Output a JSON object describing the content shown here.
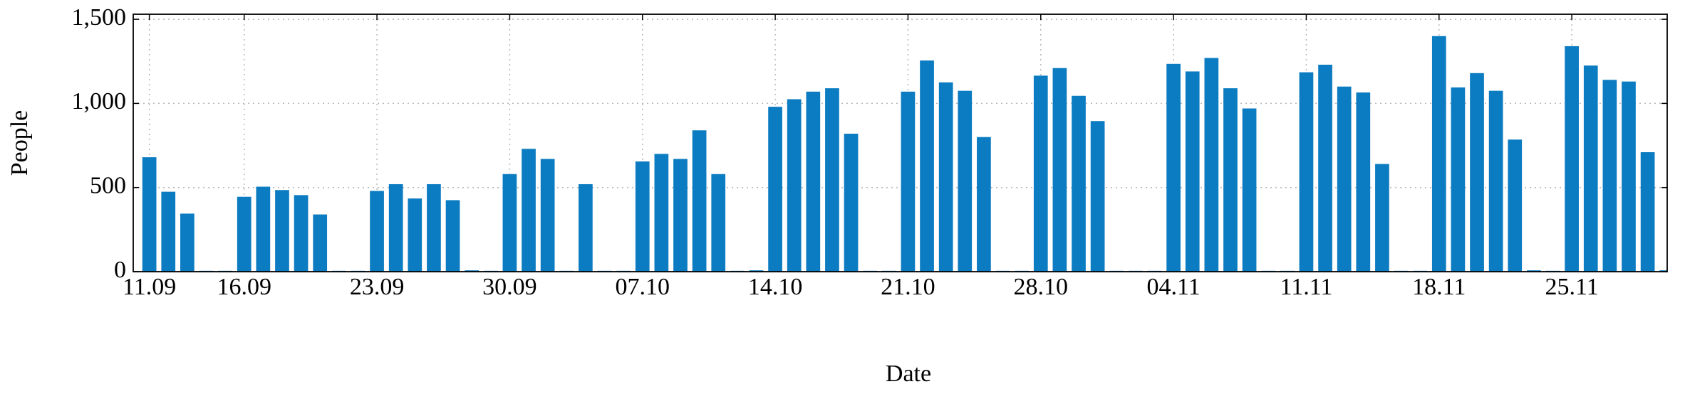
{
  "chart_data": {
    "type": "bar",
    "xlabel": "Date",
    "ylabel": "People",
    "color": "#0b7cc1",
    "categories": [
      "11.09",
      null,
      null,
      null,
      null,
      "16.09",
      null,
      null,
      null,
      null,
      null,
      null,
      "23.09",
      null,
      null,
      null,
      null,
      null,
      null,
      "30.09",
      null,
      null,
      null,
      null,
      null,
      null,
      "07.10",
      null,
      null,
      null,
      null,
      null,
      null,
      "14.10",
      null,
      null,
      null,
      null,
      null,
      null,
      "21.10",
      null,
      null,
      null,
      null,
      null,
      null,
      "28.10",
      null,
      null,
      null,
      null,
      null,
      null,
      "04.11",
      null,
      null,
      null,
      null,
      null,
      null,
      "11.11",
      null,
      null,
      null,
      null,
      null,
      null,
      "18.11",
      null,
      null,
      null,
      null,
      null,
      null,
      "25.11",
      null,
      null,
      null,
      null,
      null
    ],
    "values": [
      680,
      475,
      345,
      5,
      5,
      445,
      505,
      485,
      455,
      340,
      5,
      5,
      480,
      520,
      435,
      520,
      425,
      8,
      5,
      580,
      730,
      670,
      5,
      520,
      5,
      5,
      655,
      700,
      670,
      840,
      580,
      5,
      8,
      980,
      1025,
      1070,
      1090,
      820,
      5,
      5,
      1070,
      1255,
      1125,
      1075,
      800,
      5,
      5,
      1165,
      1210,
      1045,
      895,
      5,
      5,
      5,
      1235,
      1190,
      1270,
      1090,
      970,
      5,
      5,
      1185,
      1230,
      1100,
      1065,
      640,
      5,
      5,
      1400,
      1095,
      1180,
      1075,
      785,
      8,
      5,
      1340,
      1225,
      1140,
      1130,
      710,
      8
    ],
    "ylim": [
      0,
      1530
    ],
    "yticks": [
      0,
      500,
      {
        "value": 1000,
        "label": "1,000"
      },
      {
        "value": 1500,
        "label": "1,500"
      }
    ],
    "grid": true
  }
}
